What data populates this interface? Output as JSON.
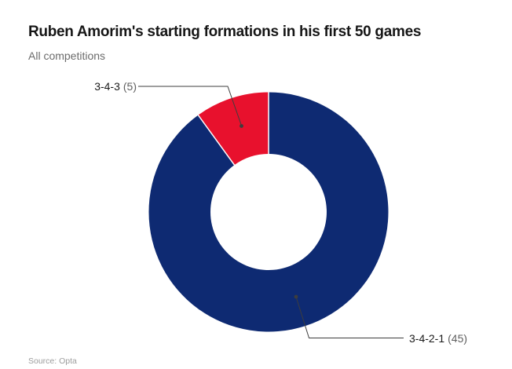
{
  "chart_data": {
    "type": "pie",
    "variant": "donut",
    "title": "Ruben Amorim's starting formations in his first 50 games",
    "subtitle": "All competitions",
    "source": "Source: Opta",
    "total_games": 50,
    "start_angle_deg": 0,
    "direction": "clockwise",
    "slices": [
      {
        "label": "3-4-2-1",
        "value": 45,
        "count_display": "(45)",
        "color": "#0e2a72"
      },
      {
        "label": "3-4-3",
        "value": 5,
        "count_display": "(5)",
        "color": "#e8112d"
      }
    ],
    "separator_color": "#ffffff",
    "leader_line_color": "#3d3d3d",
    "legend_position": "none",
    "labels_outside": true
  }
}
